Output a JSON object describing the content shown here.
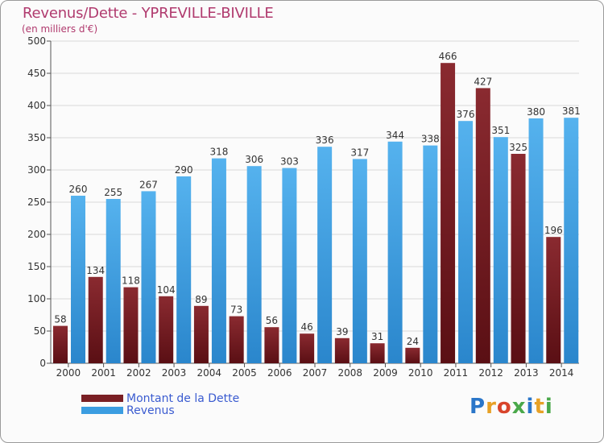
{
  "title": "Revenus/Dette - YPREVILLE-BIVILLE",
  "subtitle": "(en milliers d'€)",
  "colors": {
    "dette": "#7a1f24",
    "revenus": "#3b9de1",
    "title": "#b03a6e",
    "legend_text": "#3a5bd0"
  },
  "legend": {
    "dette_label": "Montant de la Dette",
    "revenus_label": "Revenus"
  },
  "logo": {
    "letters": [
      "P",
      "r",
      "o",
      "x",
      "i",
      "t",
      "i"
    ],
    "colors": [
      "#2a76c9",
      "#e7a126",
      "#d8442b",
      "#4aa84a",
      "#2a76c9",
      "#e7a126",
      "#4aa84a"
    ]
  },
  "chart_data": {
    "type": "bar",
    "categories": [
      "2000",
      "2001",
      "2002",
      "2003",
      "2004",
      "2005",
      "2006",
      "2007",
      "2008",
      "2009",
      "2010",
      "2011",
      "2012",
      "2013",
      "2014"
    ],
    "series": [
      {
        "name": "Montant de la Dette",
        "values": [
          58,
          134,
          118,
          104,
          89,
          73,
          56,
          46,
          39,
          31,
          24,
          466,
          427,
          325,
          196
        ]
      },
      {
        "name": "Revenus",
        "values": [
          260,
          255,
          267,
          290,
          318,
          306,
          303,
          336,
          317,
          344,
          338,
          376,
          351,
          380,
          381
        ]
      }
    ],
    "ylim": [
      0,
      500
    ],
    "yticks": [
      0,
      50,
      100,
      150,
      200,
      250,
      300,
      350,
      400,
      450,
      500
    ],
    "grid": true,
    "legend_position": "bottom-left"
  }
}
